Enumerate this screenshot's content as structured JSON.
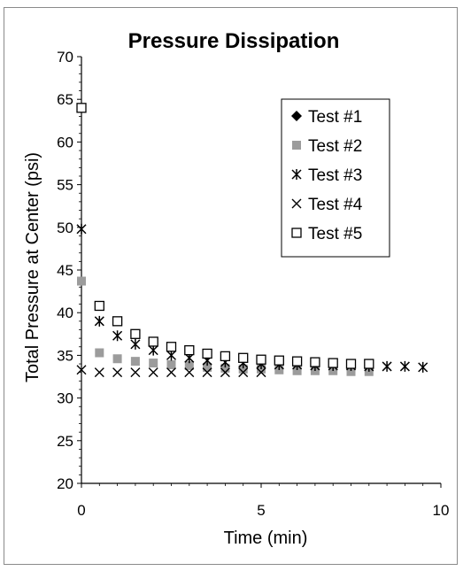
{
  "chart_data": {
    "type": "scatter",
    "title": "Pressure Dissipation",
    "xlabel": "Time (min)",
    "ylabel": "Total Pressure at Center (psi)",
    "xlim": [
      0,
      10
    ],
    "ylim": [
      20,
      70
    ],
    "xticks": [
      "0",
      "5",
      "10"
    ],
    "yticks": [
      "20",
      "25",
      "30",
      "35",
      "40",
      "45",
      "50",
      "55",
      "60",
      "65",
      "70"
    ],
    "grid": false,
    "legend_position": "top-right",
    "series": [
      {
        "name": "Test #1",
        "marker": "diamond",
        "color": "#000000",
        "x": [],
        "y": []
      },
      {
        "name": "Test #2",
        "marker": "square-filled",
        "color": "#9c9c9c",
        "x": [
          0,
          0.5,
          1,
          1.5,
          2,
          2.5,
          3,
          3.5,
          4,
          4.5,
          5,
          5.5,
          6,
          6.5,
          7,
          7.5,
          8
        ],
        "y": [
          43.7,
          35.3,
          34.6,
          34.3,
          34.1,
          33.9,
          33.8,
          33.6,
          33.5,
          33.4,
          33.4,
          33.3,
          33.2,
          33.2,
          33.2,
          33.1,
          33.1
        ]
      },
      {
        "name": "Test #3",
        "marker": "asterisk",
        "color": "#000000",
        "x": [
          0,
          0.5,
          1,
          1.5,
          2,
          2.5,
          3,
          3.5,
          4,
          4.5,
          5,
          5.5,
          6,
          6.5,
          7,
          7.5,
          8,
          8.5,
          9,
          9.5
        ],
        "y": [
          49.8,
          39.0,
          37.3,
          36.3,
          35.6,
          35.0,
          34.7,
          34.4,
          34.2,
          34.1,
          34.0,
          33.9,
          33.9,
          33.8,
          33.8,
          33.8,
          33.7,
          33.7,
          33.7,
          33.6
        ]
      },
      {
        "name": "Test #4",
        "marker": "x",
        "color": "#000000",
        "x": [
          0,
          0.5,
          1,
          1.5,
          2,
          2.5,
          3,
          3.5,
          4,
          4.5,
          5
        ],
        "y": [
          33.3,
          33.0,
          33.0,
          33.0,
          33.0,
          33.0,
          33.0,
          33.0,
          33.0,
          33.0,
          33.0
        ]
      },
      {
        "name": "Test #5",
        "marker": "square-open",
        "color": "#000000",
        "x": [
          0,
          0.5,
          1,
          1.5,
          2,
          2.5,
          3,
          3.5,
          4,
          4.5,
          5,
          5.5,
          6,
          6.5,
          7,
          7.5,
          8
        ],
        "y": [
          64.0,
          40.8,
          39.0,
          37.5,
          36.6,
          36.0,
          35.6,
          35.2,
          34.9,
          34.7,
          34.5,
          34.4,
          34.3,
          34.2,
          34.1,
          34.0,
          34.0
        ]
      }
    ]
  }
}
